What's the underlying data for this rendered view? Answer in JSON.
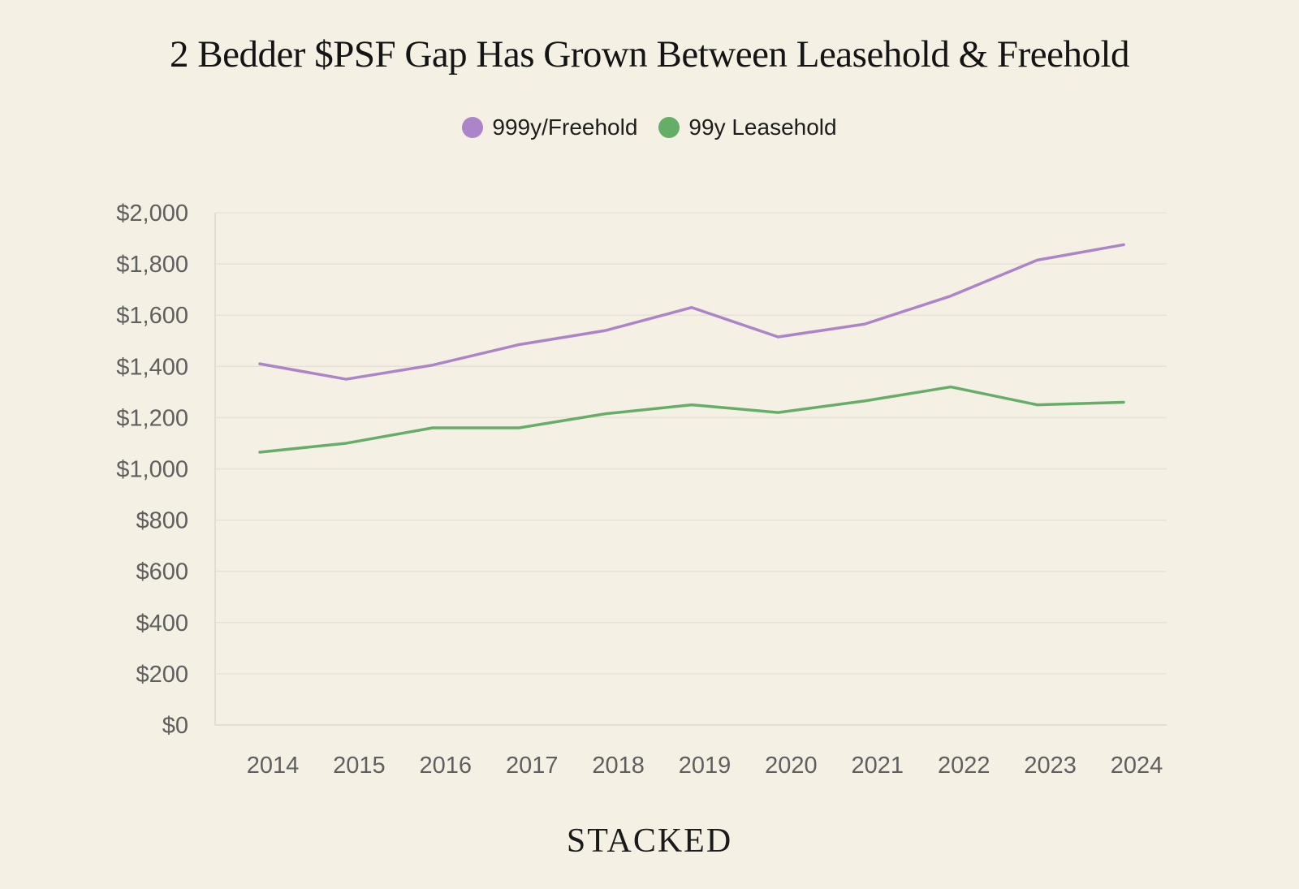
{
  "chart_data": {
    "type": "line",
    "title": "2 Bedder $PSF Gap Has Grown Between Leasehold & Freehold",
    "xlabel": "",
    "ylabel": "",
    "categories": [
      "2014",
      "2015",
      "2016",
      "2017",
      "2018",
      "2019",
      "2020",
      "2021",
      "2022",
      "2023",
      "2024"
    ],
    "series": [
      {
        "name": "999y/Freehold",
        "color": "#ab84c9",
        "values": [
          1410,
          1350,
          1405,
          1485,
          1540,
          1630,
          1515,
          1565,
          1675,
          1815,
          1875
        ]
      },
      {
        "name": "99y Leasehold",
        "color": "#65ae68",
        "values": [
          1065,
          1100,
          1160,
          1160,
          1215,
          1250,
          1220,
          1265,
          1320,
          1250,
          1260
        ]
      }
    ],
    "ylim": [
      0,
      2000
    ],
    "yticks": [
      0,
      200,
      400,
      600,
      800,
      1000,
      1200,
      1400,
      1600,
      1800,
      2000
    ],
    "ytick_labels": [
      "$0",
      "$200",
      "$400",
      "$600",
      "$800",
      "$1,000",
      "$1,200",
      "$1,400",
      "$1,600",
      "$1,800",
      "$2,000"
    ],
    "grid": true,
    "legend": "top-center"
  },
  "brand": "STACKED"
}
